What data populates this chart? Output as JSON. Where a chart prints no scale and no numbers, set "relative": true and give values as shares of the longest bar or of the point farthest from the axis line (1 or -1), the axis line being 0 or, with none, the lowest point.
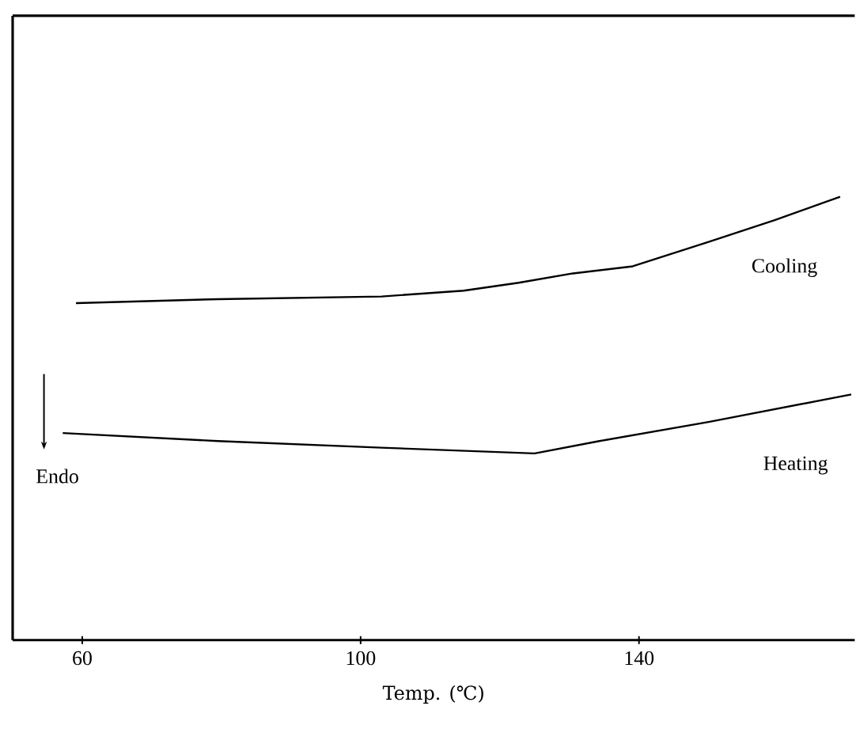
{
  "chart_data": {
    "type": "line",
    "relative": true,
    "xlabel": "Temp. (℃)",
    "xlim": [
      50,
      171
    ],
    "xticks": [
      60,
      100,
      140
    ],
    "annotations": [
      "Endo"
    ],
    "series": [
      {
        "name": "Cooling",
        "color": "#000000",
        "x": [
          59.1,
          79.5,
          103,
          114.8,
          122.7,
          130.5,
          139.1,
          150,
          159.5,
          168.9
        ],
        "values": [
          0.76,
          0.769,
          0.775,
          0.788,
          0.806,
          0.827,
          0.843,
          0.898,
          0.947,
          1.0
        ]
      },
      {
        "name": "Heating",
        "color": "#000000",
        "x": [
          57.2,
          79.5,
          103,
          125,
          134.3,
          150,
          170.5
        ],
        "values": [
          0.467,
          0.449,
          0.434,
          0.421,
          0.449,
          0.492,
          0.554
        ]
      }
    ]
  }
}
